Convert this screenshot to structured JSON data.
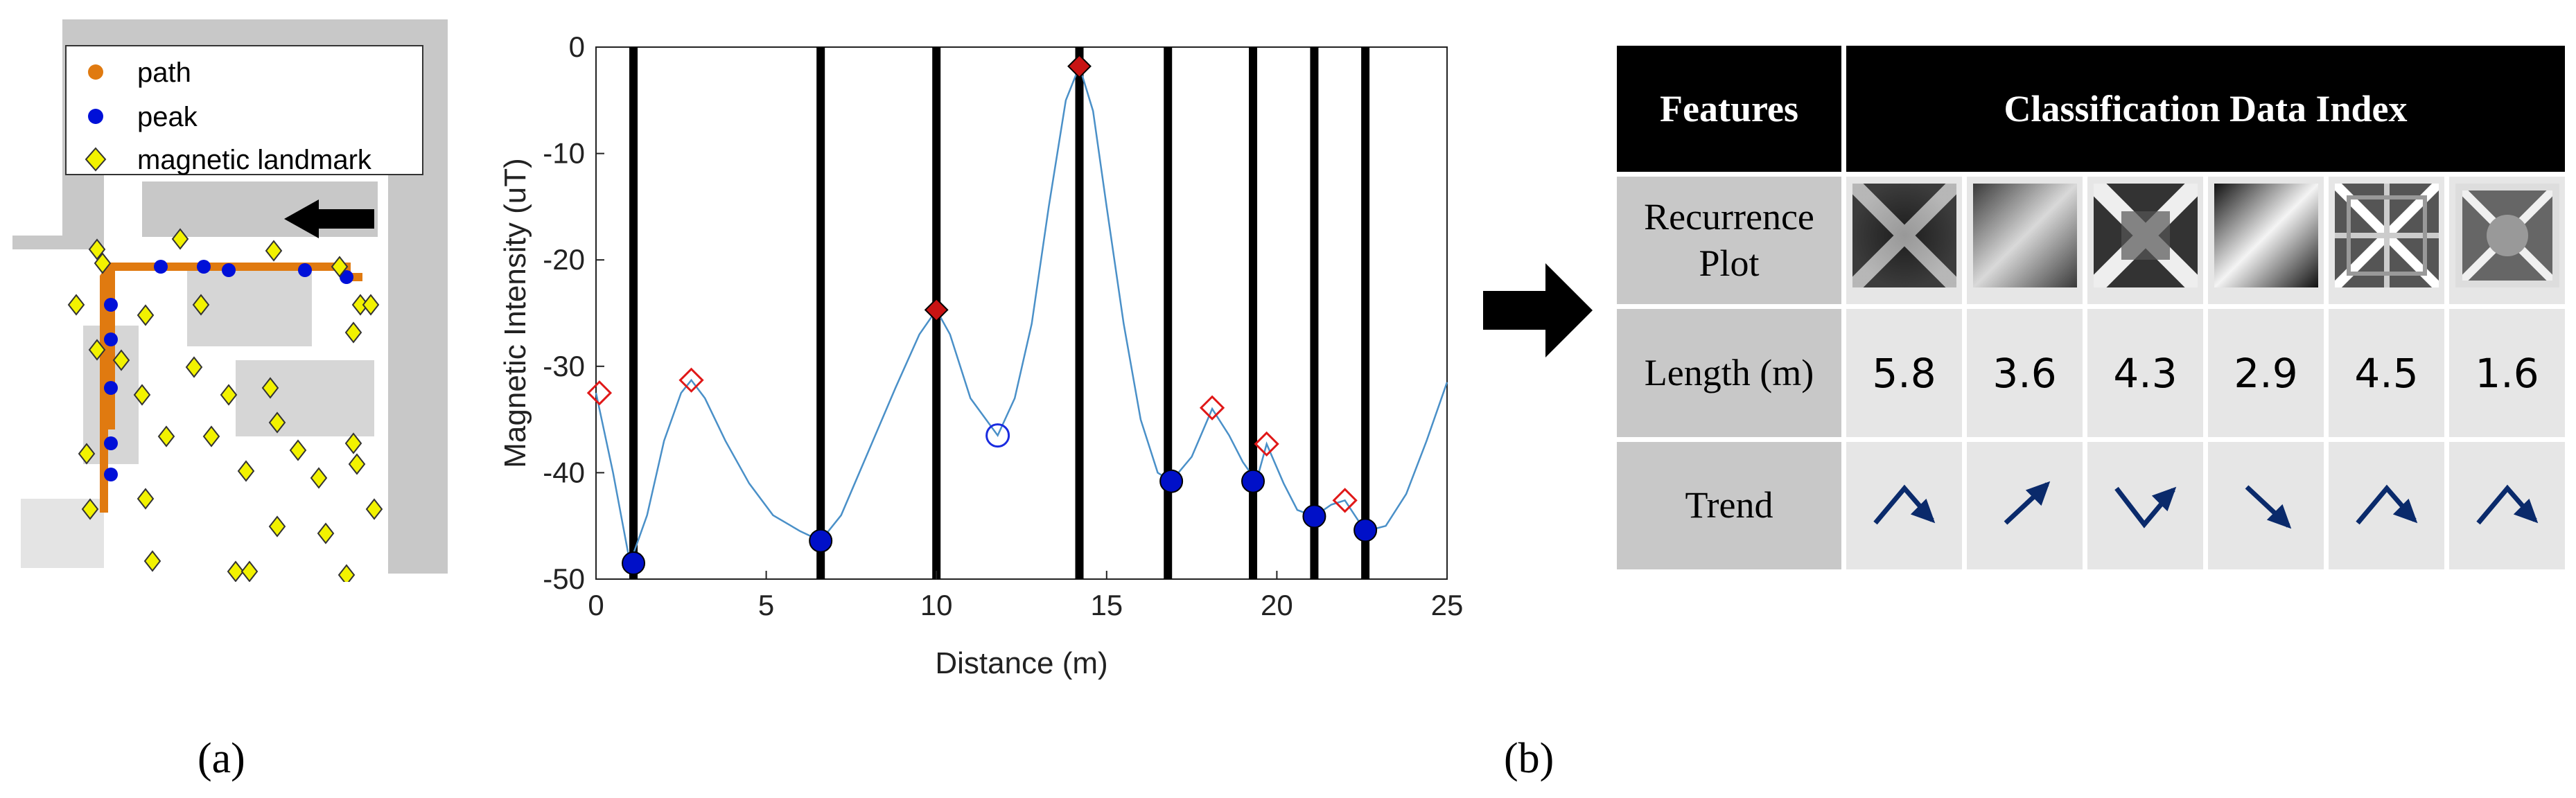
{
  "panel_a": {
    "label": "(a)",
    "legend": [
      {
        "label": "path",
        "color": "#e07a10",
        "marker": "dot"
      },
      {
        "label": "peak",
        "color": "#0010d8",
        "marker": "dot"
      },
      {
        "label": "magnetic landmark",
        "color": "#f2f200",
        "marker": "diamond"
      }
    ]
  },
  "panel_b": {
    "label": "(b)"
  },
  "chart_data": {
    "type": "line",
    "xlabel": "Distance (m)",
    "ylabel": "Magnetic Intensity (uT)",
    "xlim": [
      0,
      25
    ],
    "ylim": [
      -50,
      0
    ],
    "xticks": [
      0,
      5,
      10,
      15,
      20,
      25
    ],
    "yticks": [
      0,
      -10,
      -20,
      -30,
      -40,
      -50
    ],
    "line_color": "#4a90c8",
    "x": [
      0,
      0.5,
      1.0,
      1.5,
      2.0,
      2.5,
      2.8,
      3.2,
      3.8,
      4.5,
      5.2,
      6.0,
      6.6,
      7.2,
      8.0,
      8.8,
      9.5,
      10.0,
      10.4,
      11.0,
      11.8,
      12.3,
      12.8,
      13.3,
      13.8,
      14.2,
      14.6,
      15.0,
      15.5,
      16.0,
      16.5,
      16.9,
      17.5,
      18.1,
      18.6,
      19.0,
      19.4,
      19.7,
      20.2,
      20.6,
      21.1,
      21.6,
      22.0,
      22.6,
      23.2,
      23.8,
      24.4,
      25.0
    ],
    "y": [
      -32.5,
      -40,
      -48.5,
      -44,
      -37,
      -32.5,
      -31.3,
      -33,
      -37,
      -41,
      -44,
      -45.5,
      -46.4,
      -44,
      -38,
      -32,
      -27,
      -24.7,
      -27,
      -33,
      -36.5,
      -33,
      -26,
      -15,
      -5,
      -1.8,
      -6,
      -15,
      -26,
      -35,
      -40,
      -40.8,
      -38.5,
      -34,
      -36.5,
      -39,
      -40.8,
      -37.3,
      -41,
      -43.5,
      -44.1,
      -43,
      -42.6,
      -45.5,
      -45,
      -42,
      -37,
      -31.5
    ],
    "vertical_lines": [
      1.1,
      6.6,
      10.0,
      14.2,
      16.8,
      19.3,
      21.1,
      22.6
    ],
    "blue_points": [
      {
        "x": 1.1,
        "y": -48.5
      },
      {
        "x": 6.6,
        "y": -46.4
      },
      {
        "x": 16.9,
        "y": -40.8
      },
      {
        "x": 19.3,
        "y": -40.8
      },
      {
        "x": 21.1,
        "y": -44.1
      },
      {
        "x": 22.6,
        "y": -45.4
      }
    ],
    "red_filled_diamonds": [
      {
        "x": 10.0,
        "y": -24.7
      },
      {
        "x": 14.2,
        "y": -1.8
      }
    ],
    "red_open_diamonds": [
      {
        "x": 0.1,
        "y": -32.5
      },
      {
        "x": 2.8,
        "y": -31.3
      },
      {
        "x": 18.1,
        "y": -33.9
      },
      {
        "x": 19.7,
        "y": -37.3
      },
      {
        "x": 22.0,
        "y": -42.6
      }
    ],
    "blue_open_circles": [
      {
        "x": 11.8,
        "y": -36.5
      }
    ]
  },
  "table": {
    "header_features": "Features",
    "header_index": "Classification Data Index",
    "rows": {
      "recurrence_label": "Recurrence Plot",
      "length_label": "Length (m)",
      "trend_label": "Trend"
    },
    "lengths": [
      "5.8",
      "3.6",
      "4.3",
      "2.9",
      "4.5",
      "1.6"
    ],
    "trends": [
      "up-down",
      "up",
      "down-up",
      "down",
      "up-down",
      "up-down"
    ],
    "trend_color": "#0a2a6b"
  }
}
